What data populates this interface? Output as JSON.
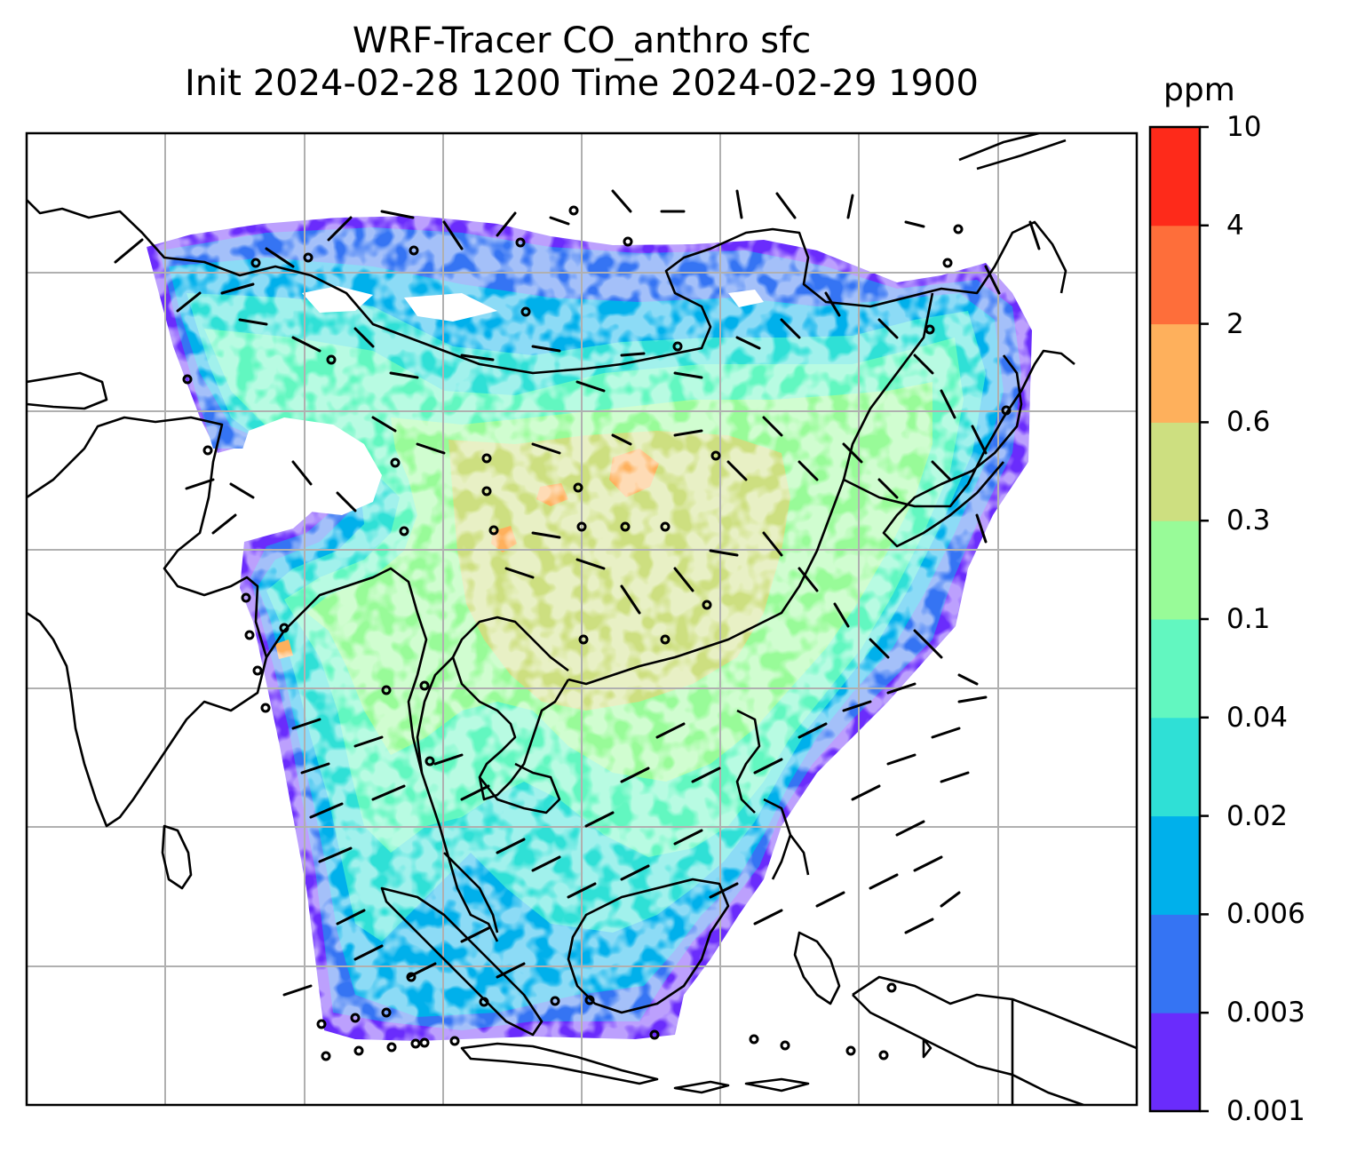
{
  "title": {
    "line1": "WRF-Tracer CO_anthro sfc",
    "line2": "Init 2024-02-28 1200 Time 2024-02-29 1900"
  },
  "colorbar": {
    "unit": "ppm",
    "levels": [
      "0.001",
      "0.003",
      "0.006",
      "0.02",
      "0.04",
      "0.1",
      "0.3",
      "0.6",
      "2",
      "4",
      "10"
    ],
    "colors": [
      "#6a2cfc",
      "#3574f3",
      "#00b0eb",
      "#2fe0d6",
      "#62f7c0",
      "#98fb98",
      "#cddf80",
      "#feb05c",
      "#fe6e3a",
      "#fe2a1a"
    ]
  },
  "map": {
    "background": "#ffffff",
    "gridlines": true,
    "gridline_color": "#b0b0b0",
    "coastline_color": "#000000",
    "wind_barbs": true
  }
}
